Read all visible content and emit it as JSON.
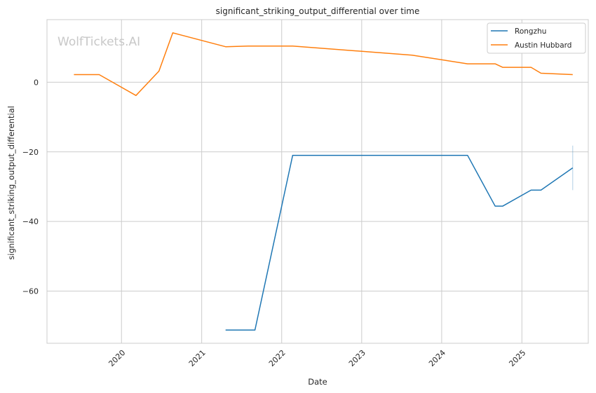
{
  "chart_data": {
    "type": "line",
    "title": "significant_striking_output_differential over time",
    "xlabel": "Date",
    "ylabel": "significant_striking_output_differential",
    "watermark": "WolfTickets.AI",
    "grid": true,
    "legend_position": "top-right",
    "x_type": "date",
    "xlim": [
      "2019-01-26",
      "2025-10-31"
    ],
    "ylim": [
      -75,
      18
    ],
    "x_ticks": [
      {
        "date": "2020-01-01",
        "label": "2020"
      },
      {
        "date": "2021-01-01",
        "label": "2021"
      },
      {
        "date": "2022-01-01",
        "label": "2022"
      },
      {
        "date": "2023-01-01",
        "label": "2023"
      },
      {
        "date": "2024-01-01",
        "label": "2024"
      },
      {
        "date": "2025-01-01",
        "label": "2025"
      }
    ],
    "y_ticks": [
      {
        "value": 0,
        "label": "0"
      },
      {
        "value": -20,
        "label": "−20"
      },
      {
        "value": -40,
        "label": "−40"
      },
      {
        "value": -60,
        "label": "−60"
      }
    ],
    "series": [
      {
        "name": "Rongzhu",
        "color": "#1f77b4",
        "points": [
          {
            "x": "2021-04-20",
            "y": -71.2
          },
          {
            "x": "2021-09-01",
            "y": -71.2
          },
          {
            "x": "2022-02-20",
            "y": -21.0
          },
          {
            "x": "2024-04-28",
            "y": -21.0
          },
          {
            "x": "2024-09-01",
            "y": -35.6
          },
          {
            "x": "2024-10-05",
            "y": -35.6
          },
          {
            "x": "2025-02-12",
            "y": -31.0
          },
          {
            "x": "2025-03-29",
            "y": -31.0
          },
          {
            "x": "2025-08-21",
            "y": -24.6
          }
        ],
        "error_bar": {
          "x": "2025-08-21",
          "low": -31.0,
          "high": -18.2
        }
      },
      {
        "name": "Austin Hubbard",
        "color": "#ff7f0e",
        "points": [
          {
            "x": "2019-05-29",
            "y": 2.2
          },
          {
            "x": "2019-09-21",
            "y": 2.2
          },
          {
            "x": "2020-03-07",
            "y": -3.8
          },
          {
            "x": "2020-06-20",
            "y": 3.2
          },
          {
            "x": "2020-08-22",
            "y": 14.2
          },
          {
            "x": "2021-04-20",
            "y": 10.2
          },
          {
            "x": "2021-08-01",
            "y": 10.4
          },
          {
            "x": "2022-02-20",
            "y": 10.4
          },
          {
            "x": "2023-08-19",
            "y": 7.8
          },
          {
            "x": "2024-04-28",
            "y": 5.3
          },
          {
            "x": "2024-09-01",
            "y": 5.3
          },
          {
            "x": "2024-10-05",
            "y": 4.3
          },
          {
            "x": "2025-02-12",
            "y": 4.3
          },
          {
            "x": "2025-03-29",
            "y": 2.6
          },
          {
            "x": "2025-08-21",
            "y": 2.2
          }
        ]
      }
    ]
  }
}
